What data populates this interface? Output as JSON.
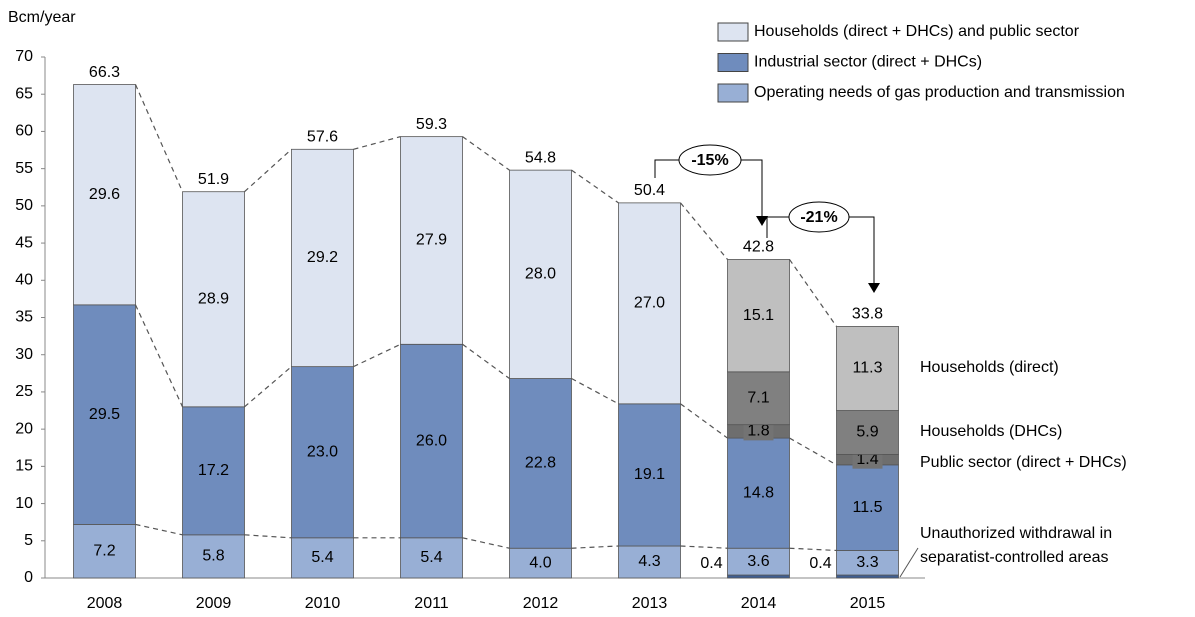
{
  "chart_data": {
    "type": "stacked-bar",
    "y_label": "Bcm/year",
    "categories": [
      "2008",
      "2009",
      "2010",
      "2011",
      "2012",
      "2013",
      "2014",
      "2015"
    ],
    "ylim": [
      0,
      70
    ],
    "yticks": [
      0,
      5,
      10,
      15,
      20,
      25,
      30,
      35,
      40,
      45,
      50,
      55,
      60,
      65,
      70
    ],
    "series": [
      {
        "name": "Unauthorized withdrawal in separatist-controlled areas",
        "color": "#3e5e92",
        "values": [
          null,
          null,
          null,
          null,
          null,
          null,
          0.4,
          0.4
        ]
      },
      {
        "name": "Operating needs of gas production and transmission",
        "color": "#98afd5",
        "values": [
          7.2,
          5.8,
          5.4,
          5.4,
          4.0,
          4.3,
          3.6,
          3.3
        ],
        "value_labels": [
          "7.2",
          "5.8",
          "5.4",
          "5.4",
          "4.0",
          "4.3",
          "3.6",
          "3.3"
        ]
      },
      {
        "name": "Industrial sector (direct + DHCs)",
        "color": "#6f8cbd",
        "values": [
          29.5,
          17.2,
          23.0,
          26.0,
          22.8,
          19.1,
          14.8,
          11.5
        ],
        "value_labels": [
          "29.5",
          "17.2",
          "23.0",
          "26.0",
          "22.8",
          "19.1",
          "14.8",
          "11.5"
        ]
      },
      {
        "name": "Public sector (direct + DHCs)",
        "color": "#6e6e6e",
        "values": [
          null,
          null,
          null,
          null,
          null,
          null,
          1.8,
          1.4
        ]
      },
      {
        "name": "Households (DHCs)",
        "color": "#808080",
        "values": [
          null,
          null,
          null,
          null,
          null,
          null,
          7.1,
          5.9
        ]
      },
      {
        "name": "Households (direct)",
        "color": "#bfbfbf",
        "values": [
          null,
          null,
          null,
          null,
          null,
          null,
          15.1,
          11.3
        ]
      },
      {
        "name": "Households (direct + DHCs) and public sector",
        "color": "#dde4f1",
        "values": [
          29.6,
          28.9,
          29.2,
          27.9,
          28.0,
          27.0,
          null,
          null
        ],
        "value_labels": [
          "29.6",
          "28.9",
          "29.2",
          "27.9",
          "28.0",
          "27.0",
          null,
          null
        ]
      }
    ],
    "totals": [
      66.3,
      51.9,
      57.6,
      59.3,
      54.8,
      50.4,
      42.8,
      33.8
    ],
    "annotations": [
      "-15%",
      "-21%"
    ]
  }
}
